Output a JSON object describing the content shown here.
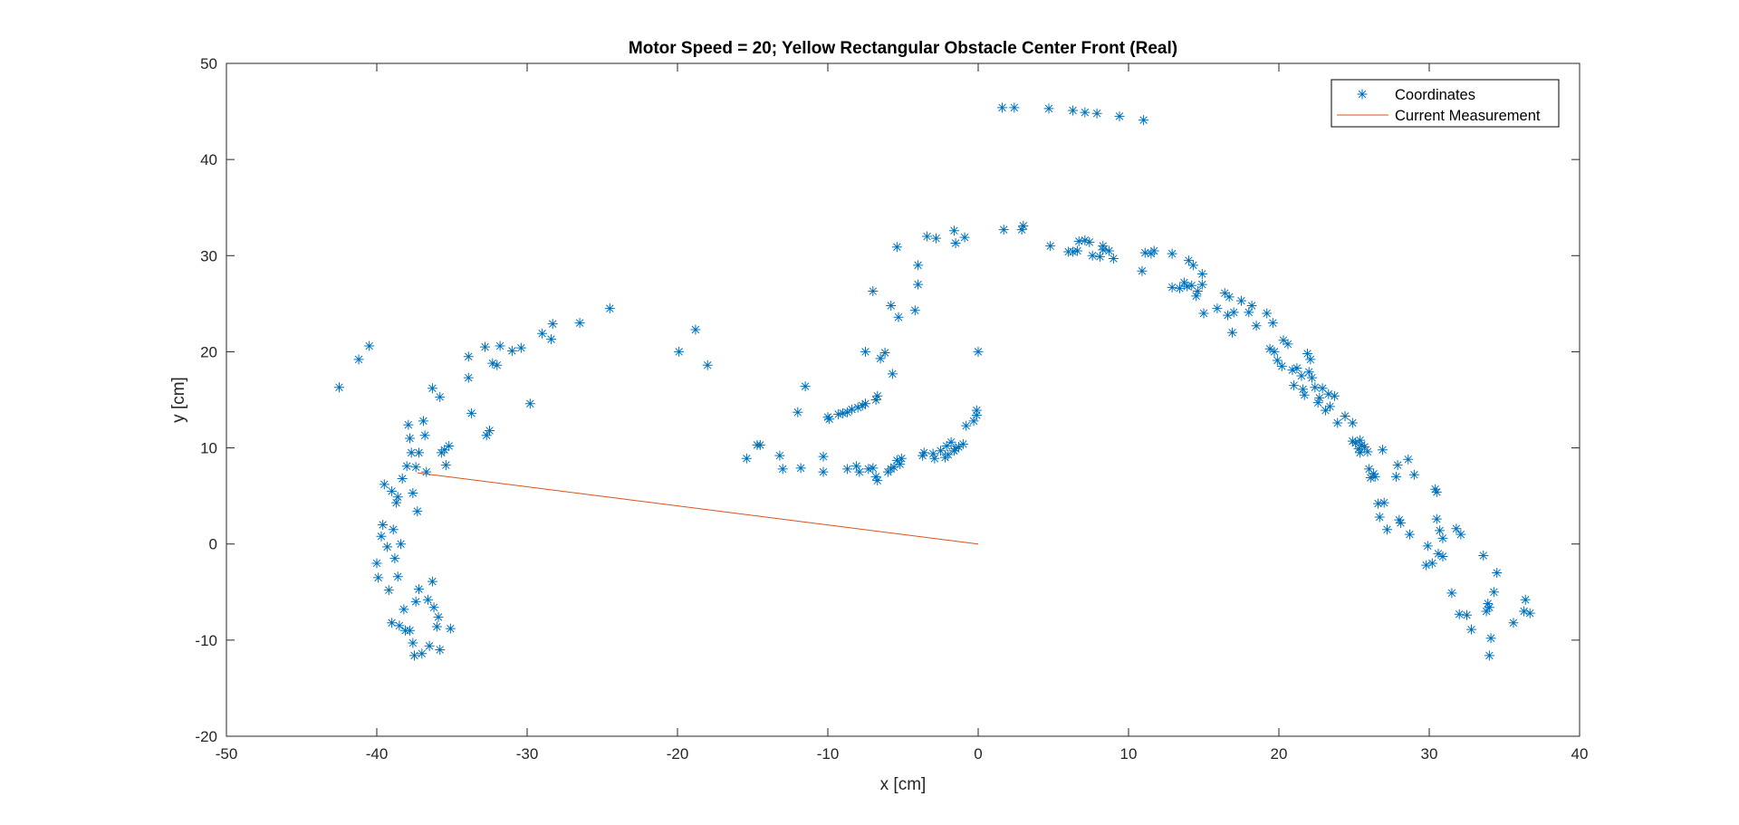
{
  "chart_data": {
    "type": "scatter",
    "title": "Motor Speed = 20; Yellow Rectangular Obstacle Center Front (Real)",
    "xlabel": "x [cm]",
    "ylabel": "y [cm]",
    "xlim": [
      -50,
      40
    ],
    "ylim": [
      -20,
      50
    ],
    "xticks": [
      -50,
      -40,
      -30,
      -20,
      -10,
      0,
      10,
      20,
      30,
      40
    ],
    "yticks": [
      -20,
      -10,
      0,
      10,
      20,
      30,
      40,
      50
    ],
    "grid": false,
    "legend_position": "top-right",
    "series": [
      {
        "name": "Coordinates",
        "marker": "asterisk",
        "color": "#0072BD",
        "points": [
          [
            -42.5,
            16.3
          ],
          [
            -41.2,
            19.2
          ],
          [
            -40.5,
            20.6
          ],
          [
            -40.0,
            -2.0
          ],
          [
            -39.9,
            -3.5
          ],
          [
            -39.7,
            0.8
          ],
          [
            -39.6,
            2.0
          ],
          [
            -39.5,
            6.2
          ],
          [
            -39.3,
            -0.3
          ],
          [
            -39.2,
            -4.8
          ],
          [
            -39.0,
            5.5
          ],
          [
            -39.0,
            -8.2
          ],
          [
            -38.9,
            1.5
          ],
          [
            -38.8,
            -1.5
          ],
          [
            -38.7,
            4.3
          ],
          [
            -38.6,
            -3.4
          ],
          [
            -38.6,
            4.9
          ],
          [
            -38.5,
            -8.5
          ],
          [
            -38.4,
            0.0
          ],
          [
            -38.3,
            6.8
          ],
          [
            -38.2,
            -6.8
          ],
          [
            -38.1,
            -9.0
          ],
          [
            -38.0,
            8.1
          ],
          [
            -37.9,
            12.4
          ],
          [
            -37.8,
            11.0
          ],
          [
            -37.8,
            -9.0
          ],
          [
            -37.7,
            9.5
          ],
          [
            -37.6,
            5.3
          ],
          [
            -37.6,
            -10.3
          ],
          [
            -37.5,
            -11.6
          ],
          [
            -37.4,
            8.0
          ],
          [
            -37.4,
            -6.0
          ],
          [
            -37.3,
            3.4
          ],
          [
            -37.2,
            9.5
          ],
          [
            -37.2,
            -4.7
          ],
          [
            -37.0,
            -11.4
          ],
          [
            -36.9,
            12.8
          ],
          [
            -36.8,
            11.3
          ],
          [
            -36.7,
            7.5
          ],
          [
            -36.6,
            -5.8
          ],
          [
            -36.5,
            -10.6
          ],
          [
            -36.3,
            16.2
          ],
          [
            -36.3,
            -3.9
          ],
          [
            -36.2,
            -6.6
          ],
          [
            -36.0,
            -8.6
          ],
          [
            -35.9,
            -7.6
          ],
          [
            -35.8,
            15.3
          ],
          [
            -35.8,
            -11.0
          ],
          [
            -35.7,
            9.5
          ],
          [
            -35.5,
            9.8
          ],
          [
            -35.4,
            8.2
          ],
          [
            -35.2,
            10.2
          ],
          [
            -35.1,
            -8.8
          ],
          [
            -33.9,
            19.5
          ],
          [
            -33.9,
            17.3
          ],
          [
            -33.7,
            13.6
          ],
          [
            -32.8,
            20.5
          ],
          [
            -32.7,
            11.3
          ],
          [
            -32.5,
            11.8
          ],
          [
            -32.3,
            18.8
          ],
          [
            -32.0,
            18.6
          ],
          [
            -31.8,
            20.6
          ],
          [
            -31.0,
            20.1
          ],
          [
            -30.4,
            20.4
          ],
          [
            -29.8,
            14.6
          ],
          [
            -29.0,
            21.9
          ],
          [
            -28.4,
            21.3
          ],
          [
            -28.3,
            22.9
          ],
          [
            -26.5,
            23.0
          ],
          [
            -24.5,
            24.5
          ],
          [
            -19.9,
            20.0
          ],
          [
            -18.8,
            22.3
          ],
          [
            -18.0,
            18.6
          ],
          [
            -15.4,
            8.9
          ],
          [
            -14.7,
            10.3
          ],
          [
            -14.5,
            10.3
          ],
          [
            -13.2,
            9.2
          ],
          [
            -13.0,
            7.8
          ],
          [
            -12.0,
            13.7
          ],
          [
            -11.8,
            7.9
          ],
          [
            -11.5,
            16.4
          ],
          [
            -10.3,
            7.5
          ],
          [
            -10.3,
            9.1
          ],
          [
            -10.0,
            13.2
          ],
          [
            -9.9,
            13.0
          ],
          [
            -9.3,
            13.5
          ],
          [
            -9.0,
            13.6
          ],
          [
            -8.7,
            13.7
          ],
          [
            -8.7,
            7.8
          ],
          [
            -8.4,
            14.0
          ],
          [
            -8.1,
            8.1
          ],
          [
            -8.0,
            14.2
          ],
          [
            -7.9,
            7.5
          ],
          [
            -7.7,
            14.4
          ],
          [
            -7.5,
            14.6
          ],
          [
            -7.5,
            20.0
          ],
          [
            -7.3,
            7.8
          ],
          [
            -7.0,
            26.3
          ],
          [
            -7.0,
            7.9
          ],
          [
            -6.8,
            7.0
          ],
          [
            -6.8,
            15.0
          ],
          [
            -6.7,
            15.4
          ],
          [
            -6.7,
            6.6
          ],
          [
            -6.5,
            19.3
          ],
          [
            -6.2,
            19.9
          ],
          [
            -6.0,
            7.5
          ],
          [
            -5.8,
            24.8
          ],
          [
            -5.8,
            7.8
          ],
          [
            -5.7,
            17.7
          ],
          [
            -5.6,
            8.0
          ],
          [
            -5.4,
            30.9
          ],
          [
            -5.4,
            8.7
          ],
          [
            -5.3,
            23.6
          ],
          [
            -5.2,
            8.3
          ],
          [
            -5.1,
            8.9
          ],
          [
            -4.2,
            24.3
          ],
          [
            -4.0,
            29.0
          ],
          [
            -4.0,
            27.0
          ],
          [
            -3.7,
            9.2
          ],
          [
            -3.6,
            9.5
          ],
          [
            -3.4,
            32.0
          ],
          [
            -3.0,
            9.4
          ],
          [
            -2.9,
            8.9
          ],
          [
            -2.8,
            31.8
          ],
          [
            -2.5,
            9.7
          ],
          [
            -2.2,
            9.0
          ],
          [
            -2.1,
            10.2
          ],
          [
            -2.0,
            9.3
          ],
          [
            -1.8,
            10.6
          ],
          [
            -1.6,
            9.7
          ],
          [
            -1.6,
            32.6
          ],
          [
            -1.5,
            31.3
          ],
          [
            -1.5,
            9.9
          ],
          [
            -1.3,
            10.1
          ],
          [
            -1.0,
            10.4
          ],
          [
            -0.9,
            31.9
          ],
          [
            -0.8,
            12.3
          ],
          [
            -0.3,
            12.8
          ],
          [
            -0.1,
            13.4
          ],
          [
            -0.1,
            13.9
          ],
          [
            0.0,
            20.0
          ],
          [
            1.6,
            45.4
          ],
          [
            2.4,
            45.4
          ],
          [
            4.7,
            45.3
          ],
          [
            6.3,
            45.1
          ],
          [
            7.1,
            44.9
          ],
          [
            7.9,
            44.8
          ],
          [
            9.4,
            44.5
          ],
          [
            11.0,
            44.1
          ],
          [
            1.7,
            32.7
          ],
          [
            2.9,
            32.7
          ],
          [
            3.0,
            33.1
          ],
          [
            4.8,
            31.0
          ],
          [
            6.0,
            30.4
          ],
          [
            6.3,
            30.4
          ],
          [
            6.6,
            30.5
          ],
          [
            6.7,
            31.5
          ],
          [
            7.1,
            31.6
          ],
          [
            7.4,
            31.4
          ],
          [
            7.6,
            30.0
          ],
          [
            8.1,
            29.9
          ],
          [
            8.3,
            30.6
          ],
          [
            8.3,
            31.0
          ],
          [
            8.7,
            30.5
          ],
          [
            9.0,
            29.7
          ],
          [
            10.9,
            28.4
          ],
          [
            11.1,
            30.3
          ],
          [
            11.5,
            30.2
          ],
          [
            11.7,
            30.5
          ],
          [
            12.9,
            30.2
          ],
          [
            12.9,
            26.7
          ],
          [
            13.4,
            26.6
          ],
          [
            13.7,
            27.2
          ],
          [
            13.9,
            26.8
          ],
          [
            14.0,
            29.5
          ],
          [
            14.2,
            26.9
          ],
          [
            14.3,
            29.0
          ],
          [
            14.5,
            25.8
          ],
          [
            14.6,
            26.3
          ],
          [
            14.9,
            28.1
          ],
          [
            14.9,
            27.0
          ],
          [
            15.0,
            24.0
          ],
          [
            15.9,
            24.5
          ],
          [
            16.4,
            26.1
          ],
          [
            16.6,
            23.8
          ],
          [
            16.7,
            25.7
          ],
          [
            16.9,
            22.0
          ],
          [
            17.0,
            24.1
          ],
          [
            17.5,
            25.3
          ],
          [
            18.0,
            24.1
          ],
          [
            18.2,
            24.8
          ],
          [
            18.5,
            22.7
          ],
          [
            19.2,
            24.0
          ],
          [
            19.4,
            20.3
          ],
          [
            19.6,
            23.0
          ],
          [
            19.7,
            20.0
          ],
          [
            19.9,
            19.1
          ],
          [
            20.2,
            18.5
          ],
          [
            20.3,
            21.2
          ],
          [
            20.6,
            20.8
          ],
          [
            20.9,
            18.1
          ],
          [
            21.0,
            16.5
          ],
          [
            21.2,
            18.3
          ],
          [
            21.5,
            17.5
          ],
          [
            21.6,
            16.1
          ],
          [
            21.7,
            15.5
          ],
          [
            21.9,
            19.8
          ],
          [
            22.0,
            17.9
          ],
          [
            22.1,
            19.2
          ],
          [
            22.2,
            17.3
          ],
          [
            22.4,
            16.3
          ],
          [
            22.6,
            14.7
          ],
          [
            22.7,
            15.2
          ],
          [
            22.9,
            16.2
          ],
          [
            23.1,
            13.9
          ],
          [
            23.3,
            15.6
          ],
          [
            23.4,
            14.3
          ],
          [
            23.7,
            15.4
          ],
          [
            23.9,
            12.6
          ],
          [
            24.4,
            13.3
          ],
          [
            24.9,
            12.6
          ],
          [
            24.9,
            10.7
          ],
          [
            25.1,
            10.5
          ],
          [
            25.3,
            9.9
          ],
          [
            25.4,
            9.5
          ],
          [
            25.4,
            10.8
          ],
          [
            25.5,
            10.3
          ],
          [
            25.7,
            10.1
          ],
          [
            25.9,
            9.6
          ],
          [
            26.0,
            7.8
          ],
          [
            26.1,
            6.9
          ],
          [
            26.3,
            7.3
          ],
          [
            26.4,
            7.0
          ],
          [
            26.6,
            4.2
          ],
          [
            26.7,
            2.8
          ],
          [
            26.9,
            9.8
          ],
          [
            27.0,
            4.3
          ],
          [
            27.2,
            1.5
          ],
          [
            27.8,
            7.0
          ],
          [
            27.9,
            8.2
          ],
          [
            28.0,
            2.5
          ],
          [
            28.1,
            2.2
          ],
          [
            28.6,
            8.8
          ],
          [
            28.7,
            1.0
          ],
          [
            29.0,
            7.2
          ],
          [
            29.8,
            -2.2
          ],
          [
            29.9,
            -0.2
          ],
          [
            30.2,
            -2.0
          ],
          [
            30.4,
            5.7
          ],
          [
            30.5,
            5.4
          ],
          [
            30.5,
            2.6
          ],
          [
            30.6,
            -1.0
          ],
          [
            30.7,
            1.4
          ],
          [
            30.9,
            -1.3
          ],
          [
            30.9,
            0.6
          ],
          [
            31.5,
            -5.1
          ],
          [
            31.8,
            1.6
          ],
          [
            32.0,
            -7.3
          ],
          [
            32.1,
            1.0
          ],
          [
            32.5,
            -7.4
          ],
          [
            32.8,
            -8.9
          ],
          [
            33.6,
            -1.2
          ],
          [
            33.8,
            -7.0
          ],
          [
            33.9,
            -6.2
          ],
          [
            34.0,
            -6.6
          ],
          [
            34.0,
            -11.6
          ],
          [
            34.1,
            -9.8
          ],
          [
            34.3,
            -5.0
          ],
          [
            34.5,
            -3.0
          ],
          [
            35.6,
            -8.2
          ],
          [
            36.3,
            -7.0
          ],
          [
            36.4,
            -5.8
          ],
          [
            36.7,
            -7.2
          ]
        ]
      },
      {
        "name": "Current Measurement",
        "type": "line",
        "color": "#D95319",
        "points": [
          [
            -37.3,
            7.4
          ],
          [
            0.0,
            0.0
          ]
        ]
      }
    ]
  }
}
